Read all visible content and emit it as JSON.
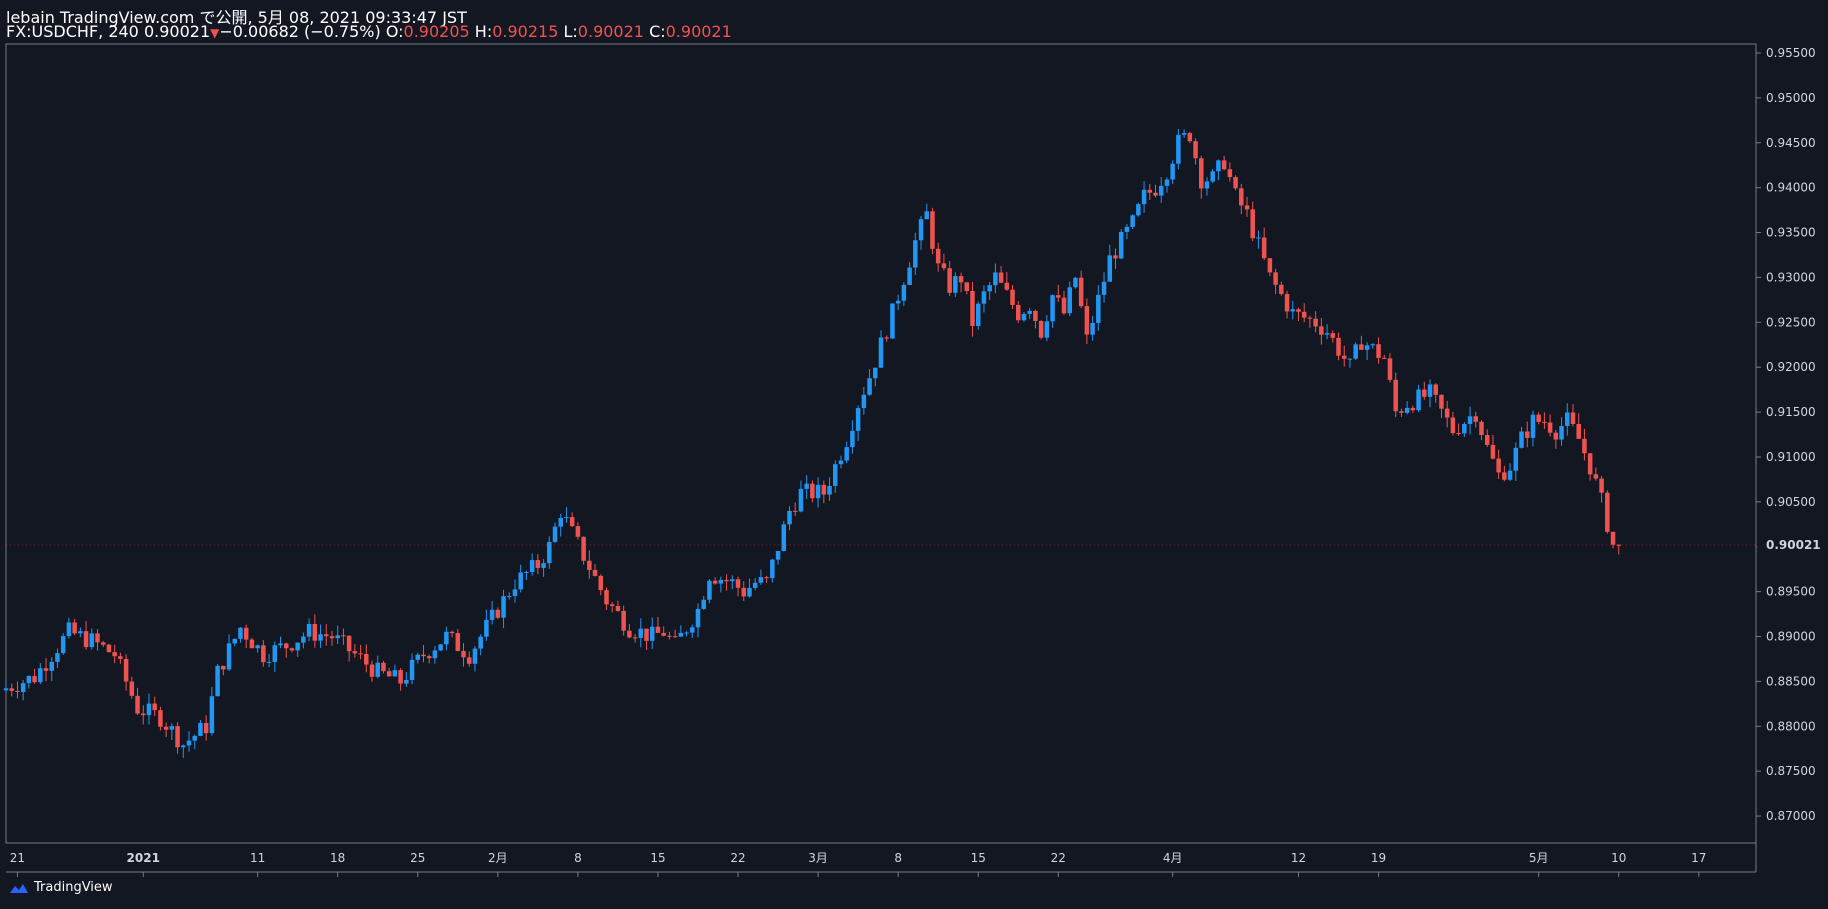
{
  "header": {
    "published": "lebain TradingView.com で公開, 5月 08, 2021 09:33:47 JST",
    "symbol": "FX:USDCHF, 240",
    "last": "0.90021",
    "change": "−0.00682 (−0.75%)",
    "o_label": "O:",
    "o_value": "0.90205",
    "h_label": "H:",
    "h_value": "0.90215",
    "l_label": "L:",
    "l_value": "0.90021",
    "c_label": "C:",
    "c_value": "0.90021"
  },
  "logo": {
    "text": "TradingView",
    "icon": "tradingview-cloud-icon"
  },
  "colors": {
    "background": "#131722",
    "up": "#2962ff",
    "up_light": "#2196f3",
    "down": "#ef5350",
    "grid": "#2a2e39",
    "axis_text": "#d1d4dc"
  },
  "chart_data": {
    "type": "candlestick",
    "symbol": "FX:USDCHF",
    "interval": "240",
    "ylim": [
      0.867,
      0.956
    ],
    "y_ticks": [
      "0.95500",
      "0.95000",
      "0.94500",
      "0.94000",
      "0.93500",
      "0.93000",
      "0.92500",
      "0.92000",
      "0.91500",
      "0.91000",
      "0.90500",
      "0.90000",
      "0.89500",
      "0.89000",
      "0.88500",
      "0.88000",
      "0.87500",
      "0.87000"
    ],
    "y_tick_values": [
      0.955,
      0.95,
      0.945,
      0.94,
      0.935,
      0.93,
      0.925,
      0.92,
      0.915,
      0.91,
      0.905,
      0.9,
      0.895,
      0.89,
      0.885,
      0.88,
      0.875,
      0.87
    ],
    "last_price_label": "0.90021",
    "last_price": 0.90021,
    "x_ticks": [
      {
        "label": "21",
        "bold": false,
        "day": 0
      },
      {
        "label": "2021",
        "bold": true,
        "day": 11
      },
      {
        "label": "11",
        "bold": false,
        "day": 21
      },
      {
        "label": "18",
        "bold": false,
        "day": 28
      },
      {
        "label": "25",
        "bold": false,
        "day": 35
      },
      {
        "label": "2月",
        "bold": false,
        "day": 42
      },
      {
        "label": "8",
        "bold": false,
        "day": 49
      },
      {
        "label": "15",
        "bold": false,
        "day": 56
      },
      {
        "label": "22",
        "bold": false,
        "day": 63
      },
      {
        "label": "3月",
        "bold": false,
        "day": 70
      },
      {
        "label": "8",
        "bold": false,
        "day": 77
      },
      {
        "label": "15",
        "bold": false,
        "day": 84
      },
      {
        "label": "22",
        "bold": false,
        "day": 91
      },
      {
        "label": "4月",
        "bold": false,
        "day": 101
      },
      {
        "label": "12",
        "bold": false,
        "day": 112
      },
      {
        "label": "19",
        "bold": false,
        "day": 119
      },
      {
        "label": "5月",
        "bold": false,
        "day": 133
      },
      {
        "label": "10",
        "bold": false,
        "day": 140
      },
      {
        "label": "17",
        "bold": false,
        "day": 147
      }
    ],
    "x_day_range": [
      -1,
      152
    ],
    "path_days": [
      -1,
      2,
      5,
      7,
      9,
      11,
      13,
      15,
      17,
      18,
      20,
      22,
      24,
      26,
      28,
      30,
      32,
      34,
      36,
      38,
      40,
      42,
      44,
      46,
      47,
      48,
      50,
      52,
      54,
      56,
      57,
      58,
      60,
      61,
      63,
      64,
      65,
      66,
      68,
      69,
      71,
      73,
      74,
      75,
      77,
      78,
      79,
      80,
      81,
      82,
      83,
      84,
      85,
      86,
      87,
      88,
      89,
      90,
      91,
      92,
      93,
      94,
      96,
      98,
      99,
      100,
      101,
      102,
      103,
      104,
      105,
      106,
      107,
      108,
      110,
      112,
      114,
      115,
      117,
      118,
      120,
      121,
      122,
      124,
      126,
      127,
      128,
      129,
      130,
      131,
      132,
      133,
      134,
      135,
      136,
      137,
      138,
      139,
      140
    ],
    "path_closes": [
      0.884,
      0.8855,
      0.8905,
      0.8895,
      0.888,
      0.882,
      0.881,
      0.878,
      0.88,
      0.886,
      0.891,
      0.888,
      0.889,
      0.8905,
      0.89,
      0.888,
      0.886,
      0.885,
      0.888,
      0.89,
      0.888,
      0.892,
      0.896,
      0.898,
      0.9,
      0.904,
      0.899,
      0.894,
      0.891,
      0.89,
      0.8905,
      0.889,
      0.893,
      0.897,
      0.896,
      0.895,
      0.896,
      0.896,
      0.904,
      0.906,
      0.906,
      0.912,
      0.916,
      0.919,
      0.926,
      0.93,
      0.934,
      0.937,
      0.931,
      0.929,
      0.93,
      0.925,
      0.928,
      0.93,
      0.928,
      0.926,
      0.927,
      0.924,
      0.928,
      0.926,
      0.93,
      0.923,
      0.932,
      0.936,
      0.939,
      0.94,
      0.942,
      0.945,
      0.946,
      0.941,
      0.941,
      0.943,
      0.939,
      0.937,
      0.93,
      0.926,
      0.925,
      0.924,
      0.92,
      0.923,
      0.921,
      0.915,
      0.916,
      0.917,
      0.913,
      0.914,
      0.915,
      0.911,
      0.908,
      0.909,
      0.912,
      0.914,
      0.914,
      0.913,
      0.914,
      0.912,
      0.909,
      0.905,
      0.90021
    ],
    "candles_per_day": 2
  }
}
